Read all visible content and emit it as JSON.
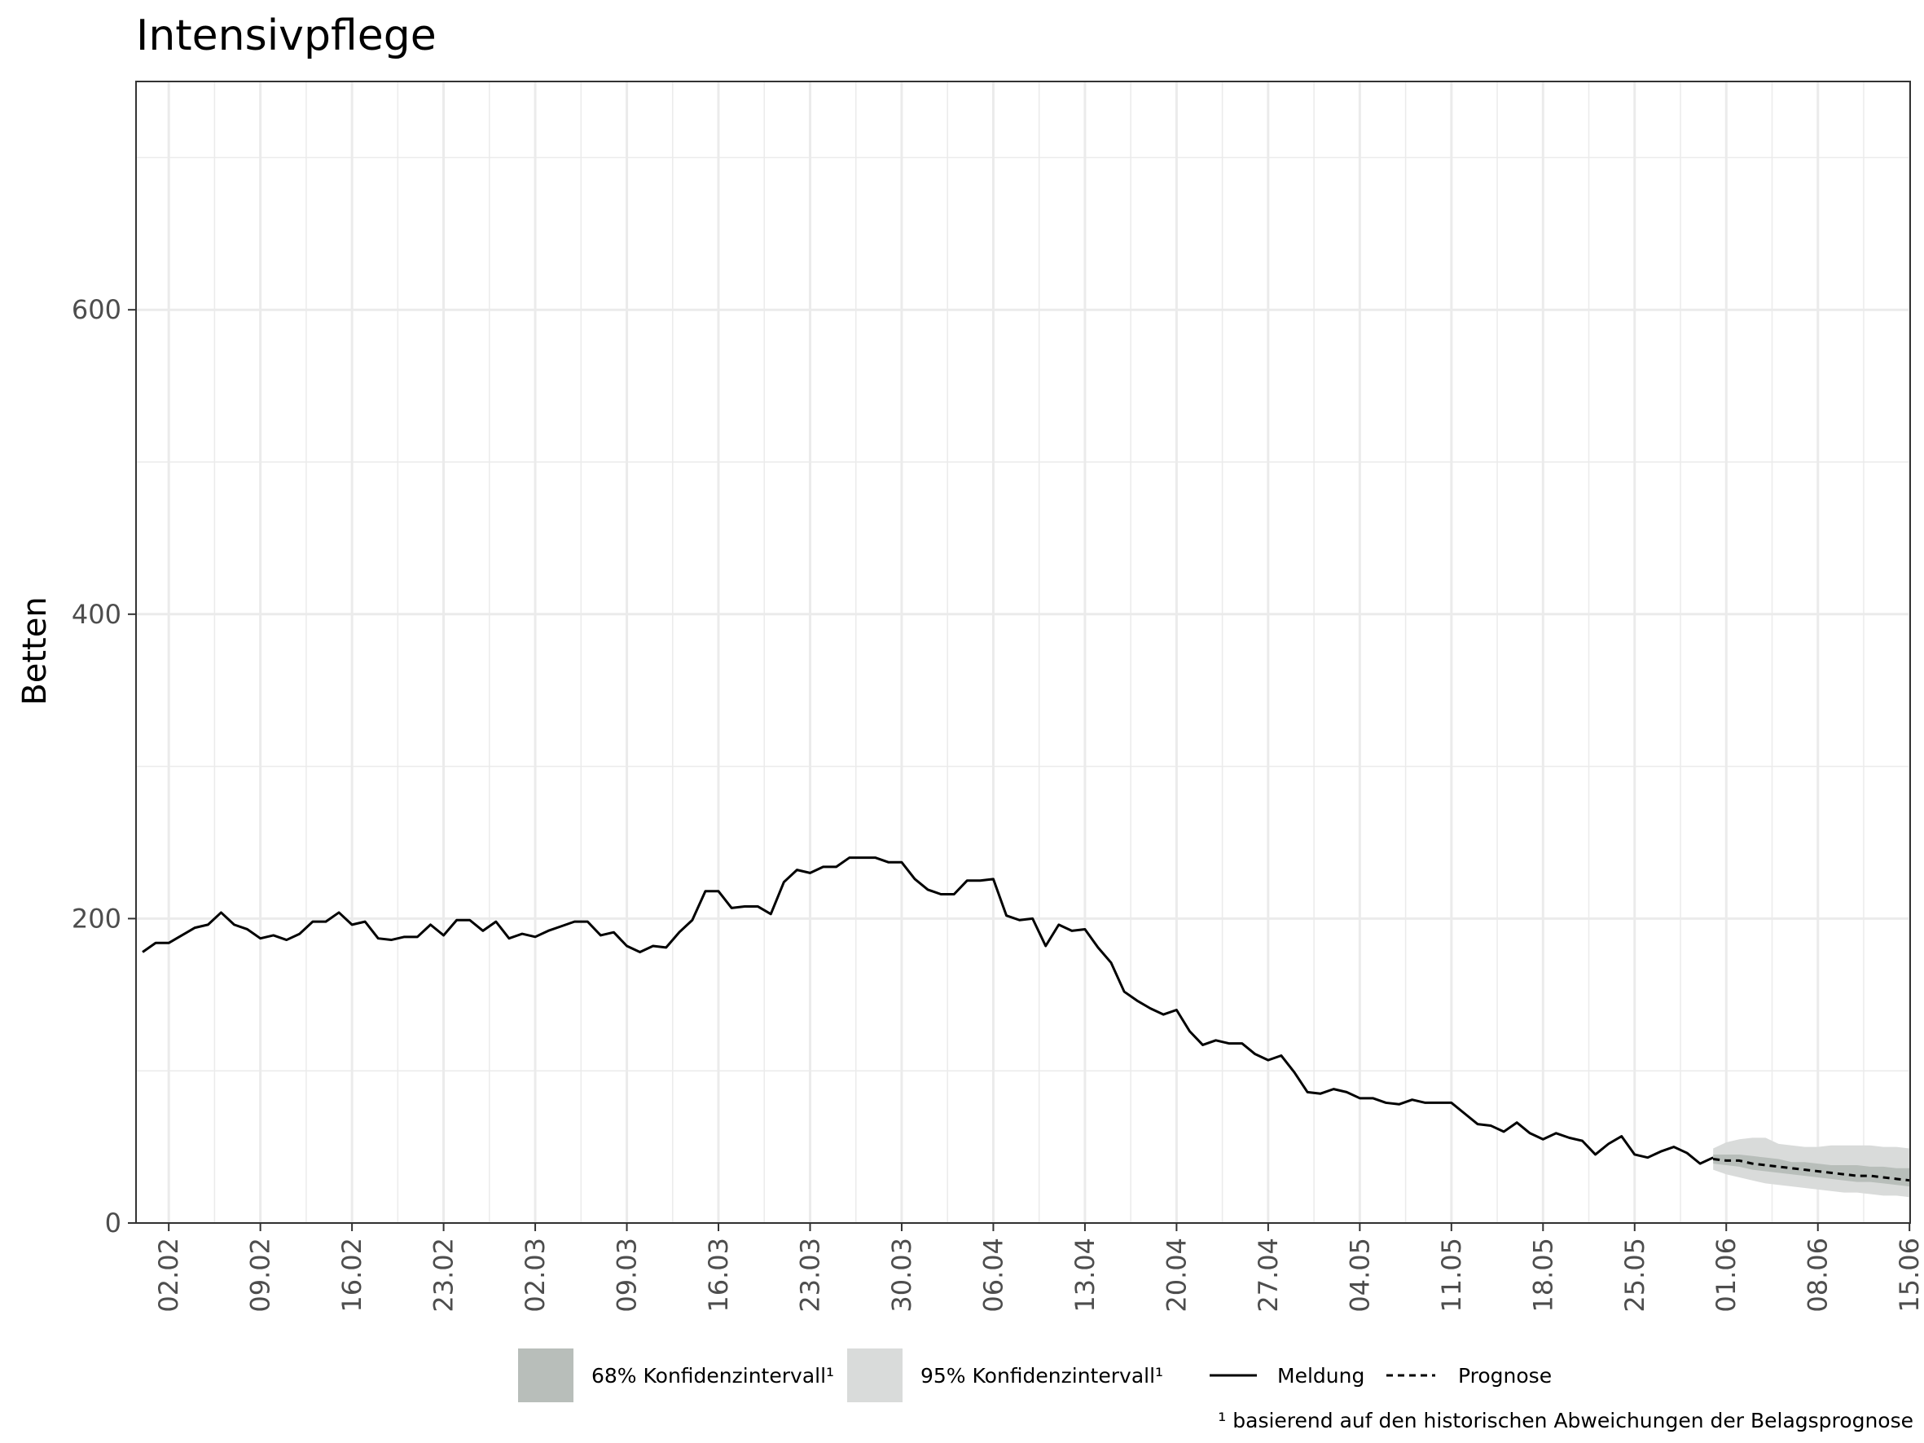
{
  "chart_data": {
    "type": "line",
    "title": "Intensivpflege",
    "ylabel": "Betten",
    "xlabel": "",
    "ylim": [
      0,
      750
    ],
    "yticks": [
      0,
      200,
      400,
      600
    ],
    "grid": true,
    "legend_position": "bottom",
    "x_tick_labels": [
      "02.02",
      "09.02",
      "16.02",
      "23.02",
      "02.03",
      "09.03",
      "16.03",
      "23.03",
      "30.03",
      "06.04",
      "13.04",
      "20.04",
      "27.04",
      "04.05",
      "11.05",
      "18.05",
      "25.05",
      "01.06",
      "08.06",
      "15.06"
    ],
    "x_start": "31.01",
    "x_end": "15.06",
    "legend": {
      "ci68": "68% Konfidenzintervall¹",
      "ci95": "95% Konfidenzintervall¹",
      "observed": "Meldung",
      "forecast": "Prognose"
    },
    "footnote": "¹ basierend auf den historischen Abweichungen der Belagsprognose",
    "colors": {
      "ci68": "#b8beba",
      "ci95": "#d9dbda",
      "line": "#000000",
      "grid": "#ebebeb"
    },
    "series": [
      {
        "name": "Meldung",
        "style": "solid",
        "start": "31.01",
        "values": [
          178,
          184,
          184,
          189,
          194,
          196,
          204,
          196,
          193,
          187,
          189,
          186,
          190,
          198,
          198,
          204,
          196,
          198,
          187,
          186,
          188,
          188,
          196,
          189,
          199,
          199,
          192,
          198,
          187,
          190,
          188,
          192,
          195,
          198,
          198,
          189,
          191,
          182,
          178,
          182,
          181,
          191,
          199,
          218,
          218,
          207,
          208,
          208,
          203,
          224,
          232,
          230,
          234,
          234,
          240,
          240,
          240,
          237,
          237,
          226,
          219,
          216,
          216,
          225,
          225,
          226,
          202,
          199,
          200,
          182,
          196,
          192,
          193,
          181,
          171,
          152,
          146,
          141,
          137,
          140,
          126,
          117,
          120,
          118,
          118,
          111,
          107,
          110,
          99,
          86,
          85,
          88,
          86,
          82,
          82,
          79,
          78,
          81,
          79,
          79,
          79,
          72,
          65,
          64,
          60,
          66,
          59,
          55,
          59,
          56,
          54,
          45,
          52,
          57,
          45,
          43,
          47,
          50,
          46,
          39,
          43
        ],
        "x_labels": []
      },
      {
        "name": "Prognose",
        "style": "dashed",
        "start": "31.05",
        "values": [
          42,
          41,
          41,
          39,
          38,
          37,
          36,
          35,
          34,
          33,
          32,
          31,
          31,
          30,
          29,
          28
        ],
        "ci68_lower": [
          39,
          38,
          37,
          35,
          34,
          33,
          32,
          31,
          30,
          29,
          28,
          27,
          27,
          26,
          25,
          24
        ],
        "ci68_upper": [
          45,
          45,
          45,
          44,
          43,
          42,
          40,
          40,
          39,
          38,
          38,
          38,
          37,
          37,
          36,
          36
        ],
        "ci95_lower": [
          35,
          32,
          30,
          28,
          26,
          25,
          24,
          23,
          22,
          21,
          20,
          20,
          19,
          18,
          18,
          17
        ],
        "ci95_upper": [
          49,
          53,
          55,
          56,
          56,
          52,
          51,
          50,
          50,
          51,
          51,
          51,
          51,
          50,
          50,
          49
        ]
      }
    ]
  }
}
